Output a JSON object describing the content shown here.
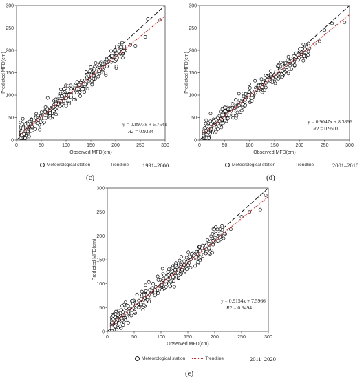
{
  "legend": {
    "station": "Meteorological station",
    "trend": "Trendline"
  },
  "chart_data": [
    {
      "type": "scatter",
      "panel_label": "(c)",
      "period": "1991–2000",
      "xlabel": "Observed MFD(cm)",
      "ylabel": "Predicted MFD(cm)",
      "xlim": [
        0,
        300
      ],
      "ylim": [
        0,
        300
      ],
      "xticks": [
        "0",
        "50",
        "100",
        "150",
        "200",
        "250",
        "300"
      ],
      "yticks": [
        "0",
        "50",
        "100",
        "150",
        "200",
        "250",
        "300"
      ],
      "equation": "y = 0.8977x + 6.7541",
      "r2_label": "R",
      "r2_value": "2 = 0.9334",
      "slope": 0.8977,
      "intercept": 6.7541,
      "r2": 0.9334,
      "series": [
        {
          "name": "Meteorological station",
          "x": [
            10,
            15,
            20,
            25,
            30,
            35,
            40,
            45,
            50,
            55,
            60,
            65,
            70,
            75,
            80,
            85,
            90,
            95,
            100,
            105,
            110,
            115,
            120,
            125,
            130,
            135,
            140,
            145,
            150,
            155,
            160,
            170,
            180,
            190,
            200,
            210,
            220,
            230,
            240,
            260,
            265,
            290
          ],
          "y": [
            12,
            20,
            22,
            30,
            35,
            40,
            42,
            48,
            50,
            55,
            60,
            64,
            68,
            72,
            78,
            80,
            86,
            92,
            95,
            98,
            104,
            110,
            115,
            118,
            124,
            128,
            130,
            138,
            140,
            146,
            150,
            158,
            168,
            176,
            185,
            192,
            200,
            212,
            210,
            230,
            270,
            268
          ]
        },
        {
          "name": "Trendline"
        }
      ]
    },
    {
      "type": "scatter",
      "panel_label": "(d)",
      "period": "2001–2010",
      "xlabel": "Observed MFD(cm)",
      "ylabel": "Predicted MFD(cm)",
      "xlim": [
        0,
        300
      ],
      "ylim": [
        0,
        300
      ],
      "xticks": [
        "0",
        "50",
        "100",
        "150",
        "200",
        "250",
        "300"
      ],
      "yticks": [
        "0",
        "50",
        "100",
        "150",
        "200",
        "250",
        "300"
      ],
      "equation": "y = 0.9047x + 8.3896",
      "r2_label": "R",
      "r2_value": "2 = 0.9501",
      "slope": 0.9047,
      "intercept": 8.3896,
      "r2": 0.9501,
      "series": [
        {
          "name": "Meteorological station",
          "x": [
            10,
            15,
            20,
            25,
            30,
            35,
            40,
            45,
            50,
            55,
            60,
            65,
            70,
            75,
            80,
            85,
            90,
            95,
            100,
            105,
            110,
            115,
            120,
            125,
            130,
            135,
            140,
            145,
            150,
            155,
            160,
            170,
            180,
            190,
            200,
            210,
            220,
            230,
            240,
            250,
            265,
            290
          ],
          "y": [
            15,
            20,
            25,
            30,
            36,
            40,
            45,
            48,
            54,
            58,
            62,
            66,
            72,
            76,
            80,
            86,
            90,
            95,
            100,
            104,
            108,
            112,
            118,
            122,
            126,
            130,
            136,
            140,
            144,
            148,
            152,
            162,
            170,
            180,
            186,
            196,
            205,
            214,
            220,
            245,
            260,
            262
          ]
        },
        {
          "name": "Trendline"
        }
      ]
    },
    {
      "type": "scatter",
      "panel_label": "(e)",
      "period": "2011–2020",
      "xlabel": "Observed MFD(cm)",
      "ylabel": "Predicted MFD(cm)",
      "xlim": [
        0,
        300
      ],
      "ylim": [
        0,
        300
      ],
      "xticks": [
        "0",
        "50",
        "100",
        "150",
        "200",
        "250",
        "300"
      ],
      "yticks": [
        "0",
        "50",
        "100",
        "150",
        "200",
        "250",
        "300"
      ],
      "equation": "y = 0.9154x + 7.5966",
      "r2_label": "R",
      "r2_value": "2 = 0.9494",
      "slope": 0.9154,
      "intercept": 7.5966,
      "r2": 0.9494,
      "series": [
        {
          "name": "Meteorological station",
          "x": [
            8,
            12,
            18,
            22,
            28,
            32,
            38,
            42,
            48,
            52,
            58,
            62,
            68,
            72,
            78,
            82,
            88,
            92,
            98,
            102,
            108,
            112,
            118,
            122,
            128,
            132,
            138,
            142,
            148,
            152,
            160,
            170,
            180,
            190,
            200,
            210,
            220,
            230,
            250,
            265,
            285,
            295
          ],
          "y": [
            10,
            15,
            20,
            26,
            30,
            34,
            38,
            44,
            48,
            52,
            56,
            60,
            66,
            70,
            76,
            80,
            84,
            88,
            94,
            98,
            104,
            108,
            112,
            116,
            122,
            126,
            130,
            134,
            140,
            144,
            152,
            160,
            170,
            178,
            188,
            194,
            204,
            214,
            240,
            250,
            255,
            285
          ]
        },
        {
          "name": "Trendline"
        }
      ]
    }
  ]
}
